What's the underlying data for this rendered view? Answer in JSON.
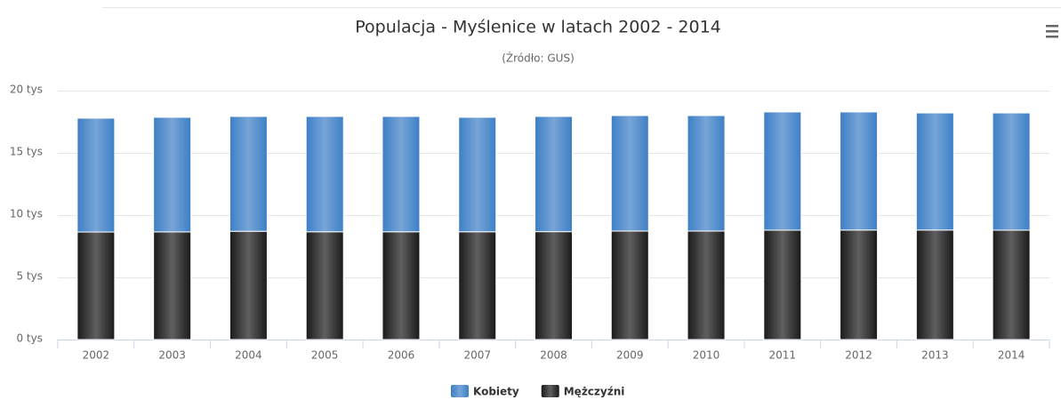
{
  "chart_data": {
    "type": "stacked_bar",
    "title": "Populacja - Myślenice w latach 2002 - 2014",
    "subtitle": "(Źródło: GUS)",
    "categories": [
      "2002",
      "2003",
      "2004",
      "2005",
      "2006",
      "2007",
      "2008",
      "2009",
      "2010",
      "2011",
      "2012",
      "2013",
      "2014"
    ],
    "series": [
      {
        "name": "Kobiety",
        "color": "#3d7fc6",
        "values": [
          9.15,
          9.21,
          9.23,
          9.27,
          9.27,
          9.2,
          9.26,
          9.28,
          9.28,
          9.5,
          9.49,
          9.41,
          9.42
        ]
      },
      {
        "name": "Mężczyźni",
        "color": "#1a1a1a",
        "values": [
          8.64,
          8.65,
          8.7,
          8.66,
          8.66,
          8.66,
          8.67,
          8.72,
          8.72,
          8.79,
          8.8,
          8.8,
          8.79
        ]
      }
    ],
    "ylim": [
      0,
      20
    ],
    "yticks": [
      {
        "value": 0,
        "label": "0 tys"
      },
      {
        "value": 5,
        "label": "5 tys"
      },
      {
        "value": 10,
        "label": "10 tys"
      },
      {
        "value": 15,
        "label": "15 tys"
      },
      {
        "value": 20,
        "label": "20 tys"
      }
    ],
    "grid": true,
    "legend": "bottom"
  }
}
